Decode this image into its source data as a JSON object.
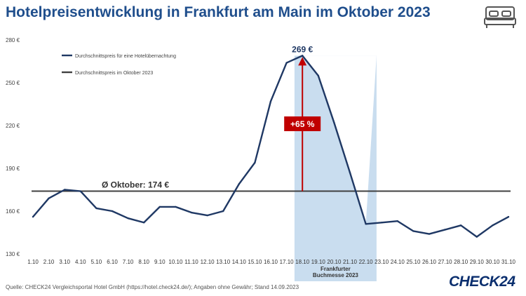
{
  "title": "Hotelpreisentwicklung in Frankfurt am Main im Oktober 2023",
  "source": "Quelle: CHECK24 Vergleichsportal Hotel GmbH (https://hotel.check24.de/); Angaben ohne Gewähr; Stand 14.09.2023",
  "brand": "CHECK24",
  "icon": "bed-icon",
  "colors": {
    "title": "#1f4e8c",
    "series": "#1f3864",
    "average": "#404040",
    "highlight": "#c9ddef",
    "arrow": "#c00000"
  },
  "chart_data": {
    "type": "line",
    "ylim": [
      130,
      280
    ],
    "y_ticks": [
      130,
      160,
      190,
      220,
      250,
      280
    ],
    "y_tick_labels": [
      "130 €",
      "160 €",
      "190 €",
      "220 €",
      "250 €",
      "280 €"
    ],
    "categories": [
      "1.10",
      "2.10",
      "3.10",
      "4.10",
      "5.10",
      "6.10",
      "7.10",
      "8.10",
      "9.10",
      "10.10",
      "11.10",
      "12.10",
      "13.10",
      "14.10",
      "15.10",
      "16.10",
      "17.10",
      "18.10",
      "19.10",
      "20.10",
      "21.10",
      "22.10",
      "23.10",
      "24.10",
      "25.10",
      "26.10",
      "27.10",
      "28.10",
      "29.10",
      "30.10",
      "31.10"
    ],
    "series": [
      {
        "name": "Durchschnittspreis für eine Hotelübernachtung",
        "values": [
          156,
          169,
          175,
          174,
          162,
          160,
          155,
          152,
          163,
          163,
          159,
          157,
          160,
          179,
          194,
          237,
          264,
          269,
          255,
          222,
          187,
          151,
          152,
          153,
          146,
          144,
          147,
          150,
          142,
          150,
          156
        ]
      },
      {
        "name": "Durchschnittspreis im Oktober 2023",
        "value": 174
      }
    ],
    "grid": false,
    "legend": "top-left",
    "annotations": {
      "peak_label": "269 €",
      "peak_index": 17,
      "change_label": "+65 %",
      "average_label": "Ø Oktober: 174 €",
      "highlight_from_index": 17,
      "highlight_to_index": 21,
      "highlight_label_line1": "Frankfurter",
      "highlight_label_line2": "Buchmesse 2023"
    }
  }
}
